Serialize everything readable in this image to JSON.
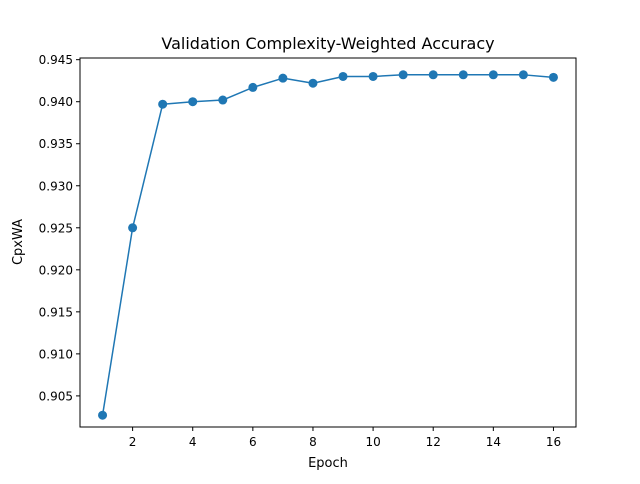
{
  "chart_data": {
    "type": "line",
    "title": "Validation Complexity-Weighted Accuracy",
    "xlabel": "Epoch",
    "ylabel": "CpxWA",
    "xlim": [
      0.25,
      16.75
    ],
    "ylim": [
      0.9013,
      0.9452
    ],
    "xticks": [
      2,
      4,
      6,
      8,
      10,
      12,
      14,
      16
    ],
    "xtick_labels": [
      "2",
      "4",
      "6",
      "8",
      "10",
      "12",
      "14",
      "16"
    ],
    "yticks": [
      0.905,
      0.91,
      0.915,
      0.92,
      0.925,
      0.93,
      0.935,
      0.94,
      0.945
    ],
    "ytick_labels": [
      "0.905",
      "0.910",
      "0.915",
      "0.920",
      "0.925",
      "0.930",
      "0.935",
      "0.940",
      "0.945"
    ],
    "grid": false,
    "series": [
      {
        "color": "#1f77b4",
        "marker": "circle",
        "x": [
          1,
          2,
          3,
          4,
          5,
          6,
          7,
          8,
          9,
          10,
          11,
          12,
          13,
          14,
          15,
          16
        ],
        "y": [
          0.9027,
          0.925,
          0.9397,
          0.94,
          0.9402,
          0.9417,
          0.9428,
          0.9422,
          0.943,
          0.943,
          0.9432,
          0.9432,
          0.9432,
          0.9432,
          0.9432,
          0.9429
        ]
      }
    ]
  }
}
